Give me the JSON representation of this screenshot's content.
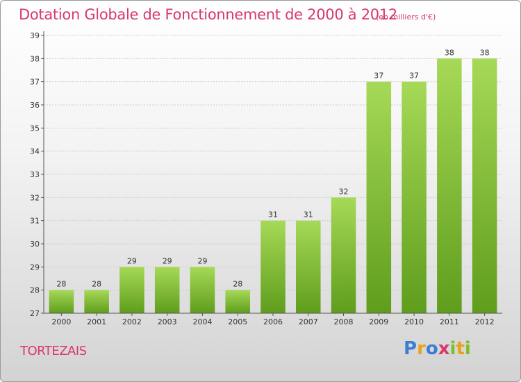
{
  "header": {
    "title": "Dotation Globale de Fonctionnement de 2000 à 2012",
    "unit": "(en milliers d'€)"
  },
  "commune": "TORTEZAIS",
  "logo": {
    "text": "Proxiti",
    "letter_colors": [
      "#3a7fd5",
      "#e8a21c",
      "#3a7fd5",
      "#d9386b",
      "#7bbf2a",
      "#e8a21c",
      "#7bbf2a"
    ]
  },
  "colors": {
    "bar_top": "#a6d957",
    "bar_bottom": "#5f9d1c",
    "title": "#d9386b",
    "grid": "#cccccc",
    "label": "#333333"
  },
  "chart_data": {
    "type": "bar",
    "categories": [
      "2000",
      "2001",
      "2002",
      "2003",
      "2004",
      "2005",
      "2006",
      "2007",
      "2008",
      "2009",
      "2010",
      "2011",
      "2012"
    ],
    "values": [
      28,
      28,
      29,
      29,
      29,
      28,
      31,
      31,
      32,
      37,
      37,
      38,
      38
    ],
    "title": "Dotation Globale de Fonctionnement de 2000 à 2012",
    "subtitle": "(en milliers d'€)",
    "ylim": [
      27,
      39
    ],
    "yticks": [
      27,
      28,
      29,
      30,
      31,
      32,
      33,
      34,
      35,
      36,
      37,
      38,
      39
    ],
    "grid": true,
    "data_labels": true
  }
}
